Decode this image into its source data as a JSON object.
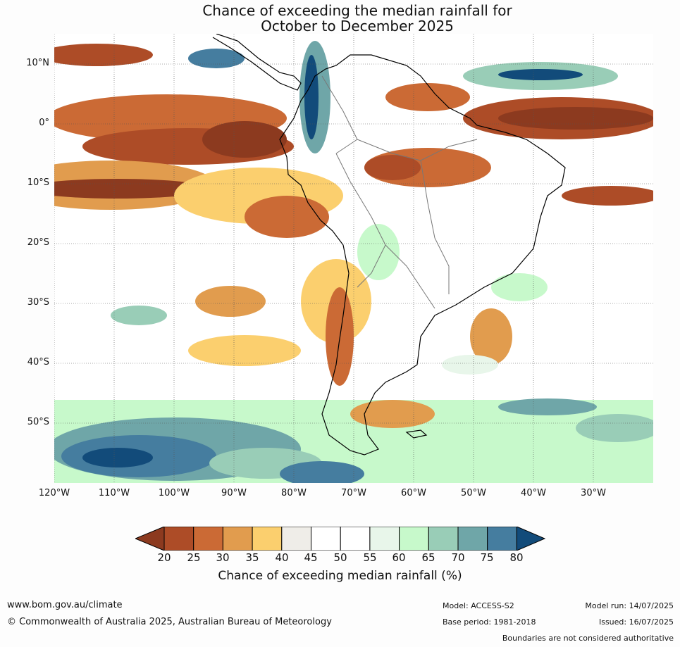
{
  "title": {
    "line1": "Chance of exceeding the median rainfall for",
    "line2": "October to December 2025"
  },
  "map": {
    "lat_labels": [
      "10°N",
      "0°",
      "10°S",
      "20°S",
      "30°S",
      "40°S",
      "50°S"
    ],
    "lon_labels": [
      "120°W",
      "110°W",
      "100°W",
      "90°W",
      "80°W",
      "70°W",
      "60°W",
      "50°W",
      "40°W",
      "30°W"
    ],
    "colors": {
      "c20": "#8c3a1f",
      "c25": "#ad4c27",
      "c30": "#cb6a35",
      "c35": "#e19c4e",
      "c40": "#fbcf6e",
      "c45": "#efede8",
      "c50": "#ffffff",
      "c55": "#ffffff",
      "c60": "#e8f6ea",
      "c65": "#c7f9cb",
      "c70": "#99cdb7",
      "c75": "#6fa6a8",
      "c80": "#457d9f",
      "c85": "#124b7a"
    }
  },
  "legend": {
    "ticks": [
      "20",
      "25",
      "30",
      "35",
      "40",
      "45",
      "50",
      "55",
      "60",
      "65",
      "70",
      "75",
      "80"
    ],
    "label": "Chance of exceeding median rainfall (%)"
  },
  "footer": {
    "website": "www.bom.gov.au/climate",
    "copyright": "© Commonwealth of Australia 2025, Australian Bureau of Meteorology",
    "model": "Model: ACCESS-S2",
    "base_period": "Base period: 1981-2018",
    "model_run": "Model run: 14/07/2025",
    "issued": "Issued: 16/07/2025",
    "disclaimer": "Boundaries are not considered authoritative"
  }
}
